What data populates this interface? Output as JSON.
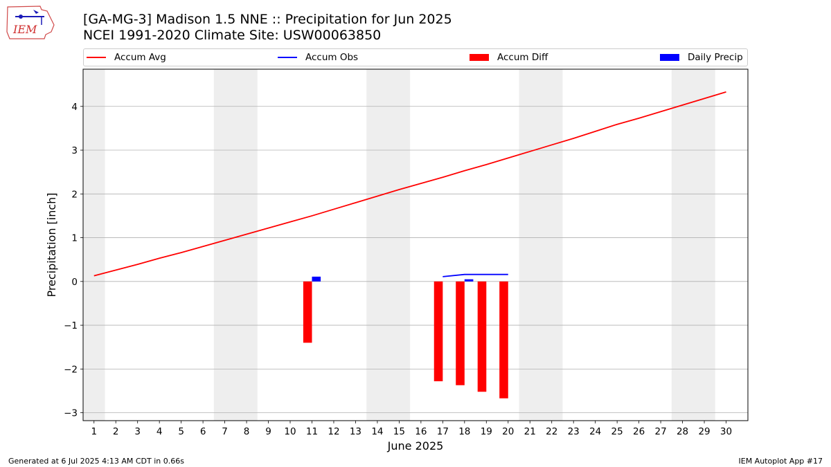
{
  "header": {
    "title_line1": "[GA-MG-3] Madison 1.5 NNE :: Precipitation for Jun 2025",
    "title_line2": "NCEI 1991-2020 Climate Site: USW00063850"
  },
  "logo": {
    "text": "IEM"
  },
  "legend": [
    {
      "label": "Accum Avg",
      "kind": "line",
      "color": "#ff0000"
    },
    {
      "label": "Accum Obs",
      "kind": "line",
      "color": "#0000ff"
    },
    {
      "label": "Accum Diff",
      "kind": "box",
      "color": "#ff0000"
    },
    {
      "label": "Daily Precip",
      "kind": "box",
      "color": "#0000ff"
    }
  ],
  "footer": {
    "left": "Generated at 6 Jul 2025 4:13 AM CDT in 0.66s",
    "right": "IEM Autoplot App #17"
  },
  "chart_data": {
    "type": "bar",
    "xlabel": "June 2025",
    "ylabel": "Precipitation [inch]",
    "xlim": [
      0.5,
      31
    ],
    "ylim": [
      -3.18,
      4.85
    ],
    "x_ticks": [
      1,
      2,
      3,
      4,
      5,
      6,
      7,
      8,
      9,
      10,
      11,
      12,
      13,
      14,
      15,
      16,
      17,
      18,
      19,
      20,
      21,
      22,
      23,
      24,
      25,
      26,
      27,
      28,
      29,
      30
    ],
    "y_ticks": [
      -3,
      -2,
      -1,
      0,
      1,
      2,
      3,
      4
    ],
    "grid": "horizontal",
    "legend_position": "top",
    "weekend_shading": [
      [
        0.5,
        1.5
      ],
      [
        6.5,
        8.5
      ],
      [
        13.5,
        15.5
      ],
      [
        20.5,
        22.5
      ],
      [
        27.5,
        29.5
      ]
    ],
    "series": [
      {
        "name": "Accum Avg",
        "type": "line",
        "color": "#ff0000",
        "x": [
          1,
          2,
          3,
          4,
          5,
          6,
          7,
          8,
          9,
          10,
          11,
          12,
          13,
          14,
          15,
          16,
          17,
          18,
          19,
          20,
          21,
          22,
          23,
          24,
          25,
          26,
          27,
          28,
          29,
          30
        ],
        "values": [
          0.13,
          0.26,
          0.39,
          0.53,
          0.66,
          0.8,
          0.94,
          1.08,
          1.22,
          1.36,
          1.5,
          1.65,
          1.8,
          1.95,
          2.1,
          2.24,
          2.38,
          2.53,
          2.67,
          2.82,
          2.97,
          3.12,
          3.27,
          3.43,
          3.59,
          3.73,
          3.88,
          4.03,
          4.18,
          4.33
        ]
      },
      {
        "name": "Accum Obs",
        "type": "line",
        "color": "#0000ff",
        "x": [
          17,
          18,
          19,
          20
        ],
        "values": [
          0.11,
          0.16,
          0.16,
          0.16
        ]
      },
      {
        "name": "Accum Diff",
        "type": "bar",
        "color": "#ff0000",
        "x": [
          11,
          17,
          18,
          19,
          20
        ],
        "values": [
          -1.4,
          -2.28,
          -2.37,
          -2.52,
          -2.67
        ]
      },
      {
        "name": "Daily Precip",
        "type": "bar",
        "color": "#0000ff",
        "x": [
          11,
          18
        ],
        "values": [
          0.11,
          0.05
        ]
      }
    ]
  }
}
